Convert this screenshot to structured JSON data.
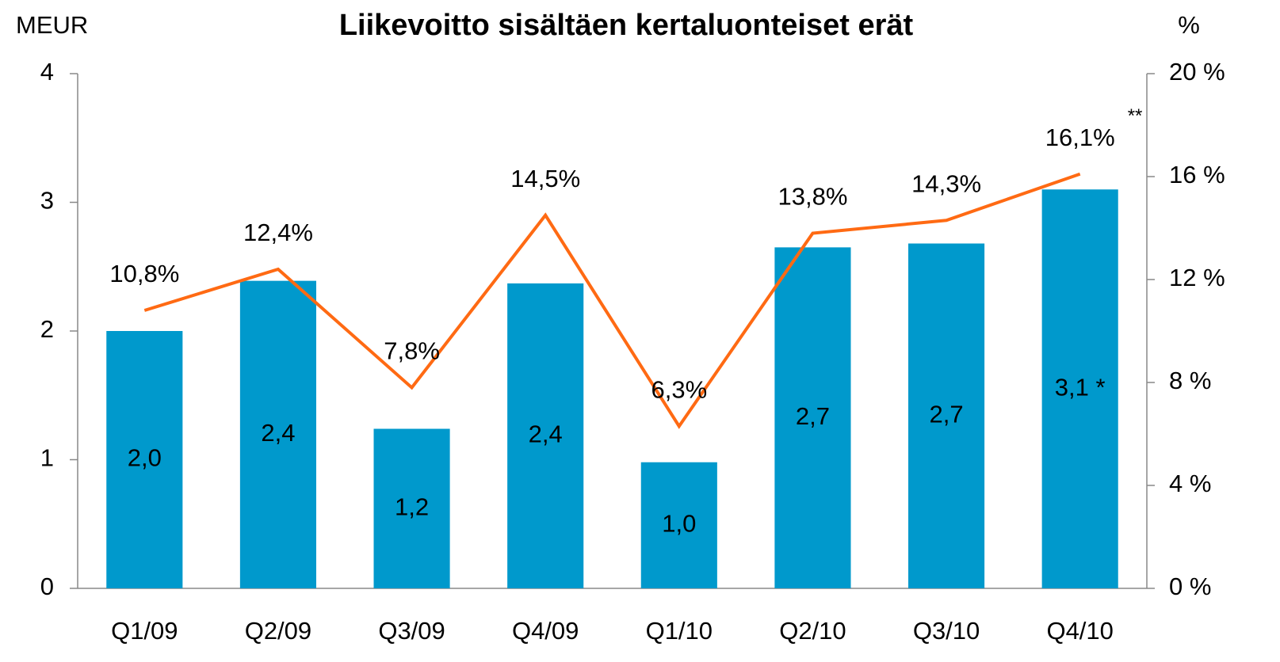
{
  "chart_data": {
    "type": "bar_line",
    "title": "Liikevoitto sisältäen kertaluonteiset erät",
    "y_label": "MEUR",
    "y2_label": "%",
    "categories": [
      "Q1/09",
      "Q2/09",
      "Q3/09",
      "Q4/09",
      "Q1/10",
      "Q2/10",
      "Q3/10",
      "Q4/10"
    ],
    "series": [
      {
        "type": "bar",
        "color": "#0099cc",
        "values": [
          2.0,
          2.39,
          1.24,
          2.37,
          0.98,
          2.65,
          2.68,
          3.1
        ],
        "value_labels": [
          "2,0",
          "2,4",
          "1,2",
          "2,4",
          "1,0",
          "2,7",
          "2,7",
          "3,1 *"
        ]
      },
      {
        "type": "line",
        "axis": "y2",
        "color": "#ff6a13",
        "values": [
          10.8,
          12.4,
          7.8,
          14.5,
          6.3,
          13.8,
          14.3,
          16.1
        ],
        "value_labels": [
          "10,8%",
          "12,4%",
          "7,8%",
          "14,5%",
          "6,3%",
          "13,8%",
          "14,3%",
          "16,1%"
        ]
      }
    ],
    "annotations": [
      "**"
    ],
    "ylim": [
      0,
      4
    ],
    "yticks": [
      0,
      1,
      2,
      3,
      4
    ],
    "y2lim": [
      0,
      20
    ],
    "y2ticks": [
      {
        "value": 0,
        "label": "0 %"
      },
      {
        "value": 4,
        "label": "4 %"
      },
      {
        "value": 8,
        "label": "8 %"
      },
      {
        "value": 12,
        "label": "12 %"
      },
      {
        "value": 16,
        "label": "16 %"
      },
      {
        "value": 20,
        "label": "20 %"
      }
    ]
  }
}
